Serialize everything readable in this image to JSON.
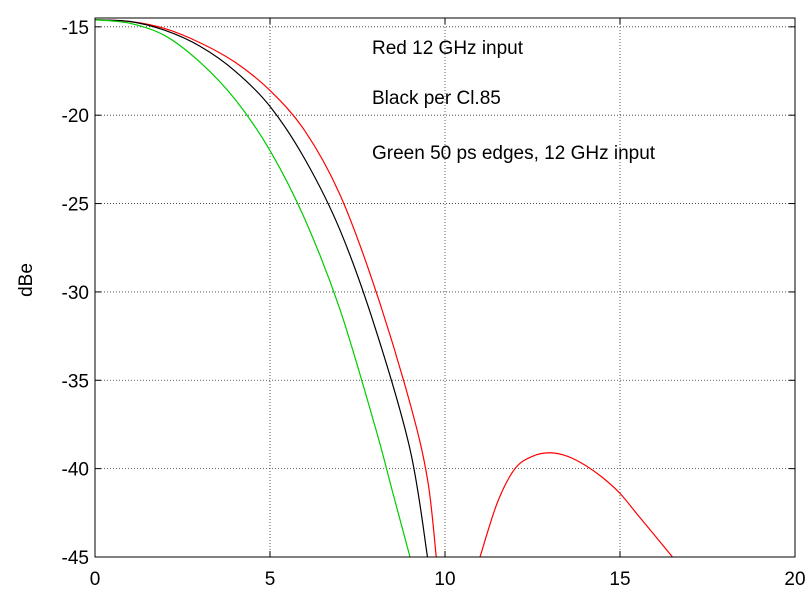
{
  "chart_data": {
    "type": "line",
    "title": "",
    "xlabel": "",
    "ylabel": "dBe",
    "xlim": [
      0,
      20
    ],
    "ylim": [
      -45,
      -14.5
    ],
    "xticks": [
      0,
      5,
      10,
      15,
      20
    ],
    "yticks": [
      -15,
      -20,
      -25,
      -30,
      -35,
      -40,
      -45
    ],
    "grid": true,
    "annotations": [
      "Red 12 GHz input",
      "Black per Cl.85",
      "Green 50 ps edges, 12 GHz input"
    ],
    "series": [
      {
        "color": "#ff0000",
        "segments": [
          {
            "x": [
              0,
              1,
              2,
              3,
              4,
              5,
              6,
              7,
              8,
              9,
              9.5,
              9.75
            ],
            "y": [
              -14.6,
              -14.7,
              -15.1,
              -15.9,
              -17.0,
              -18.6,
              -20.9,
              -24.5,
              -29.8,
              -36.3,
              -40.6,
              -45
            ]
          },
          {
            "x": [
              11.0,
              11.5,
              12,
              12.5,
              13,
              13.5,
              14,
              14.5,
              15,
              15.5,
              16,
              16.5
            ],
            "y": [
              -45,
              -41.9,
              -40.0,
              -39.3,
              -39.1,
              -39.3,
              -39.8,
              -40.5,
              -41.4,
              -42.6,
              -43.8,
              -45
            ]
          }
        ]
      },
      {
        "color": "#000000",
        "segments": [
          {
            "x": [
              0,
              1,
              2,
              3,
              4,
              5,
              6,
              7,
              8,
              9,
              9.5
            ],
            "y": [
              -14.6,
              -14.7,
              -15.2,
              -16.1,
              -17.5,
              -19.5,
              -22.5,
              -26.5,
              -32.0,
              -38.9,
              -45
            ]
          }
        ]
      },
      {
        "color": "#00cc00",
        "segments": [
          {
            "x": [
              0,
              1,
              2,
              3,
              4,
              5,
              6,
              7,
              8,
              8.5,
              9.0
            ],
            "y": [
              -14.6,
              -14.8,
              -15.5,
              -17.0,
              -19.1,
              -22.0,
              -25.9,
              -31.0,
              -37.6,
              -41.3,
              -45
            ]
          }
        ]
      }
    ]
  }
}
